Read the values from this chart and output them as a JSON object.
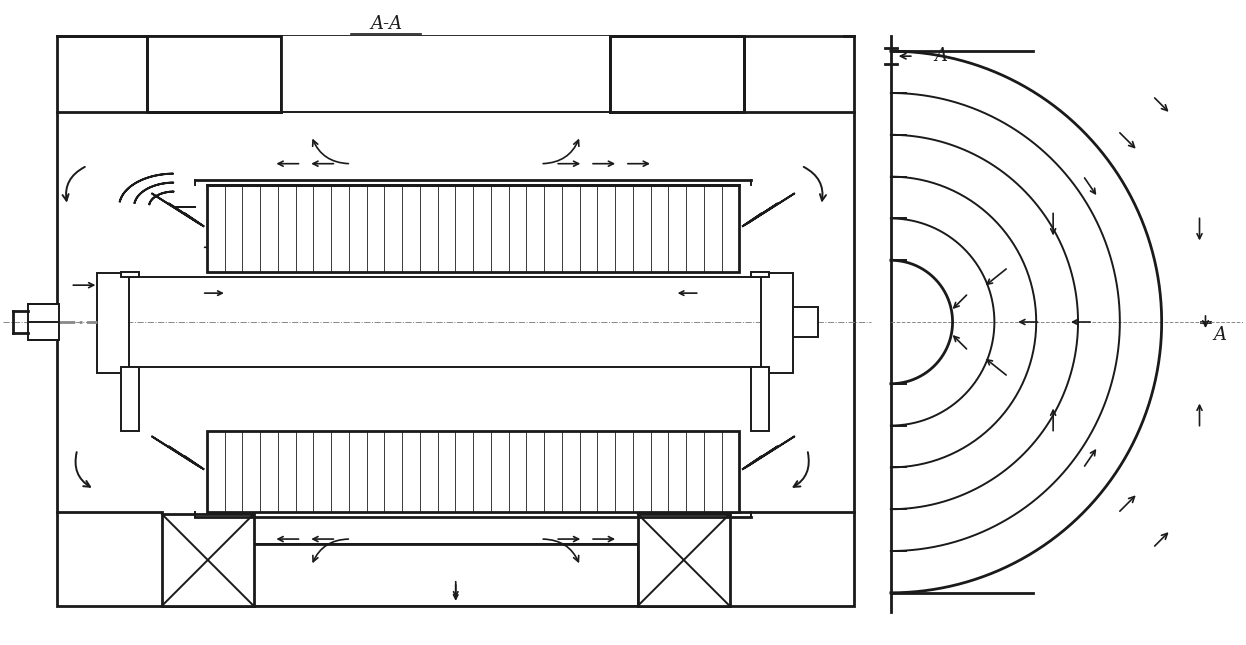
{
  "bg_color": "#ffffff",
  "line_color": "#1a1a1a",
  "lw_thick": 2.0,
  "lw_med": 1.4,
  "lw_thin": 0.8,
  "title": "A-A",
  "label_A": "A",
  "fig_width": 12.46,
  "fig_height": 6.45,
  "dpi": 100
}
